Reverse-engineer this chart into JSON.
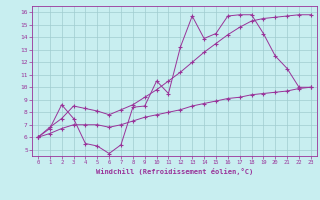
{
  "xlabel": "Windchill (Refroidissement éolien,°C)",
  "bg_color": "#c8eef0",
  "line_color": "#993399",
  "x_hours": [
    0,
    1,
    2,
    3,
    4,
    5,
    6,
    7,
    8,
    9,
    10,
    11,
    12,
    13,
    14,
    15,
    16,
    17,
    18,
    19,
    20,
    21,
    22,
    23
  ],
  "line1": [
    6.0,
    6.7,
    8.6,
    7.5,
    5.5,
    5.3,
    4.7,
    5.4,
    8.4,
    8.5,
    10.5,
    9.5,
    13.2,
    15.7,
    13.9,
    14.3,
    15.7,
    15.8,
    15.8,
    14.3,
    12.5,
    11.5,
    10.0,
    10.0
  ],
  "line2": [
    6.0,
    6.3,
    6.7,
    7.0,
    7.0,
    7.0,
    6.8,
    7.0,
    7.3,
    7.6,
    7.8,
    8.0,
    8.2,
    8.5,
    8.7,
    8.9,
    9.1,
    9.2,
    9.4,
    9.5,
    9.6,
    9.7,
    9.9,
    10.0
  ],
  "line3": [
    6.0,
    6.8,
    7.5,
    8.5,
    8.3,
    8.1,
    7.8,
    8.2,
    8.6,
    9.2,
    9.8,
    10.5,
    11.2,
    12.0,
    12.8,
    13.5,
    14.2,
    14.8,
    15.3,
    15.5,
    15.6,
    15.7,
    15.8,
    15.8
  ],
  "ylim": [
    4.5,
    16.5
  ],
  "xlim": [
    -0.5,
    23.5
  ],
  "yticks": [
    5,
    6,
    7,
    8,
    9,
    10,
    11,
    12,
    13,
    14,
    15,
    16
  ],
  "xticks": [
    0,
    1,
    2,
    3,
    4,
    5,
    6,
    7,
    8,
    9,
    10,
    11,
    12,
    13,
    14,
    15,
    16,
    17,
    18,
    19,
    20,
    21,
    22,
    23
  ]
}
